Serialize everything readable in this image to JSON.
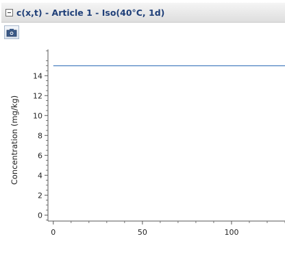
{
  "panel": {
    "title": "c(x,t) - Article 1 - Iso(40°C, 1d)",
    "toolbar_icon": "camera-icon"
  },
  "colors": {
    "title_text": "#1f3f78",
    "series_line": "#4a7fc1",
    "axis": "#555555"
  },
  "chart_data": {
    "type": "line",
    "title": "",
    "xlabel": "",
    "ylabel": "Concentration (mg/kg)",
    "xlim": [
      -3,
      130
    ],
    "ylim": [
      -0.6,
      16.5
    ],
    "xticks": [
      0,
      50,
      100
    ],
    "yticks": [
      0,
      2,
      4,
      6,
      8,
      10,
      12,
      14
    ],
    "grid": false,
    "legend": "none",
    "series": [
      {
        "x": [
          0,
          130
        ],
        "y": [
          15,
          15
        ]
      }
    ]
  }
}
